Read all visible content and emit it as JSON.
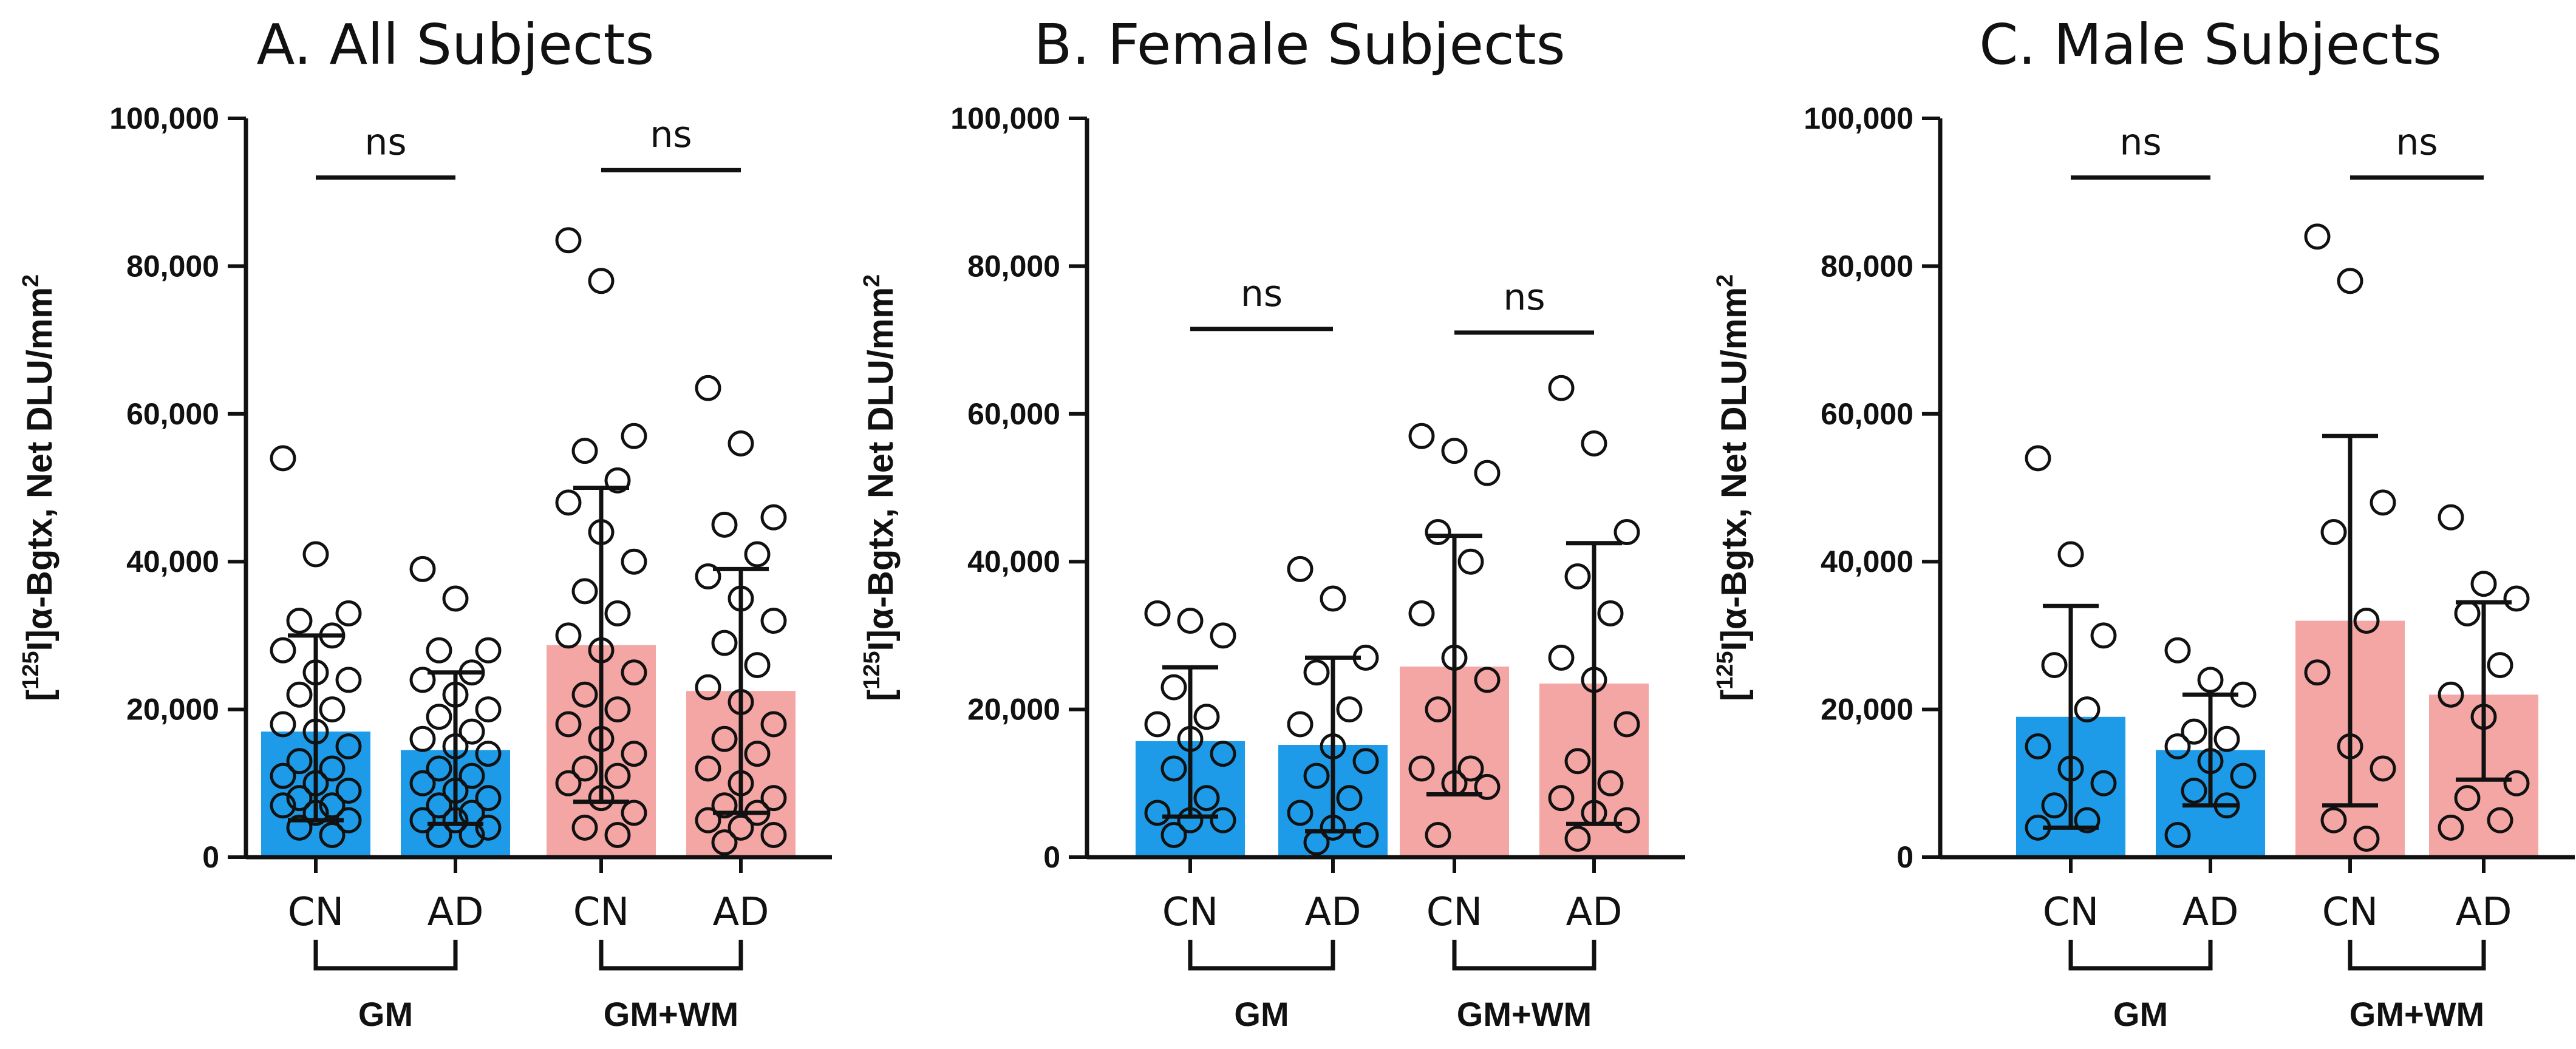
{
  "chart_data": [
    {
      "type": "bar",
      "title": "A. All Subjects",
      "ylabel_sup": "125",
      "ylabel_main": "I]α-Bgtx, Net DLU/mm",
      "ylabel_exp": "2",
      "ylim": [
        0,
        100000
      ],
      "yticks": [
        "0",
        "20,000",
        "40,000",
        "60,000",
        "80,000",
        "100,000"
      ],
      "categories": [
        "CN",
        "AD",
        "CN",
        "AD"
      ],
      "groups": [
        "GM",
        "GM+WM"
      ],
      "colors": [
        "#1e9be8",
        "#1e9be8",
        "#f4a6a4",
        "#f4a6a4"
      ],
      "means": [
        17000,
        14500,
        28700,
        22500
      ],
      "err_low": [
        5000,
        4500,
        7500,
        6000
      ],
      "err_high": [
        30000,
        25000,
        50000,
        39000
      ],
      "points": [
        [
          54000,
          41000,
          33000,
          32000,
          30000,
          28000,
          25000,
          24000,
          22000,
          20000,
          18000,
          17000,
          15000,
          13000,
          12000,
          11000,
          10000,
          9000,
          8000,
          7000,
          7000,
          6000,
          5000,
          4000,
          3000
        ],
        [
          39000,
          35000,
          28000,
          28000,
          25000,
          24000,
          22000,
          20000,
          19000,
          17000,
          16000,
          15000,
          14000,
          12000,
          11000,
          10000,
          9000,
          8000,
          7000,
          6000,
          5000,
          5000,
          4000,
          3000,
          3000
        ],
        [
          83500,
          78000,
          57000,
          55000,
          51000,
          48000,
          44000,
          40000,
          36000,
          33000,
          30000,
          28000,
          25000,
          22000,
          20000,
          18000,
          16000,
          14000,
          12000,
          11000,
          10000,
          8000,
          6000,
          4000,
          3000
        ],
        [
          63500,
          56000,
          46000,
          45000,
          41000,
          38000,
          35000,
          32000,
          29000,
          26000,
          23000,
          21000,
          18000,
          16000,
          14000,
          12000,
          10000,
          8000,
          7000,
          6000,
          5000,
          4000,
          3000,
          2000
        ]
      ],
      "comparisons": [
        "ns",
        "ns"
      ],
      "comparison_y": [
        92000,
        93000
      ]
    },
    {
      "type": "bar",
      "title": "B. Female Subjects",
      "ylabel_sup": "125",
      "ylabel_main": "I]α-Bgtx, Net DLU/mm",
      "ylabel_exp": "2",
      "ylim": [
        0,
        100000
      ],
      "yticks": [
        "0",
        "20,000",
        "40,000",
        "60,000",
        "80,000",
        "100,000"
      ],
      "categories": [
        "CN",
        "AD",
        "CN",
        "AD"
      ],
      "groups": [
        "GM",
        "GM+WM"
      ],
      "colors": [
        "#1e9be8",
        "#1e9be8",
        "#f4a6a4",
        "#f4a6a4"
      ],
      "means": [
        15700,
        15200,
        25800,
        23500
      ],
      "err_low": [
        5500,
        3500,
        8500,
        4500
      ],
      "err_high": [
        25700,
        27000,
        43500,
        42500
      ],
      "points": [
        [
          33000,
          32000,
          30000,
          23000,
          19000,
          18000,
          16000,
          14000,
          12000,
          8000,
          6000,
          5000,
          5000,
          3000
        ],
        [
          39000,
          35000,
          27000,
          25000,
          20000,
          18000,
          15000,
          13000,
          11000,
          8000,
          6000,
          4000,
          3000,
          2000
        ],
        [
          57000,
          55000,
          52000,
          44000,
          40000,
          33000,
          27000,
          24000,
          20000,
          12000,
          12000,
          10000,
          9500,
          3000
        ],
        [
          63500,
          56000,
          44000,
          38000,
          33000,
          27000,
          24000,
          18000,
          13000,
          10000,
          8000,
          6000,
          5000,
          2500
        ]
      ],
      "comparisons": [
        "ns",
        "ns"
      ],
      "comparison_y": [
        71500,
        71000
      ]
    },
    {
      "type": "bar",
      "title": "C. Male Subjects",
      "ylabel_sup": "125",
      "ylabel_main": "I]α-Bgtx, Net DLU/mm",
      "ylabel_exp": "2",
      "ylim": [
        0,
        100000
      ],
      "yticks": [
        "0",
        "20,000",
        "40,000",
        "60,000",
        "80,000",
        "100,000"
      ],
      "categories": [
        "CN",
        "AD",
        "CN",
        "AD"
      ],
      "groups": [
        "GM",
        "GM+WM"
      ],
      "colors": [
        "#1e9be8",
        "#1e9be8",
        "#f4a6a4",
        "#f4a6a4"
      ],
      "means": [
        19000,
        14500,
        32000,
        22000
      ],
      "err_low": [
        4000,
        7000,
        7000,
        10500
      ],
      "err_high": [
        34000,
        22000,
        57000,
        34500
      ],
      "points": [
        [
          54000,
          41000,
          30000,
          26000,
          20000,
          15000,
          12000,
          10000,
          7000,
          5000,
          4000
        ],
        [
          28000,
          24000,
          22000,
          17000,
          16000,
          15000,
          13000,
          11000,
          9000,
          7000,
          3000
        ],
        [
          84000,
          78000,
          48000,
          44000,
          32000,
          25000,
          15000,
          12000,
          5000,
          2500
        ],
        [
          46000,
          37000,
          35000,
          33000,
          26000,
          22000,
          19000,
          10000,
          8000,
          5000,
          4000
        ]
      ],
      "comparisons": [
        "ns",
        "ns"
      ],
      "comparison_y": [
        92000,
        92000
      ]
    }
  ]
}
